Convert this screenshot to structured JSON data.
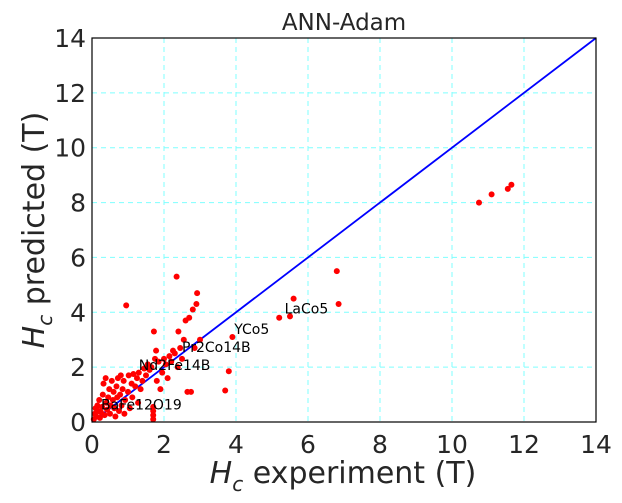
{
  "chart_data": {
    "type": "scatter",
    "title": "ANN-Adam",
    "xlabel": {
      "symbol": "H",
      "subscript": "c",
      "text": " experiment (T)"
    },
    "ylabel": {
      "symbol": "H",
      "subscript": "c",
      "text": " predicted (T)"
    },
    "xlim": [
      0,
      14
    ],
    "ylim": [
      0,
      14
    ],
    "xticks": [
      0,
      2,
      4,
      6,
      8,
      10,
      12,
      14
    ],
    "yticks": [
      0,
      2,
      4,
      6,
      8,
      10,
      12,
      14
    ],
    "grid": true,
    "colors": {
      "points": "#ff0000",
      "line": "#0000ff",
      "grid": "#7fffff",
      "axes": "#000000"
    },
    "reference_line": {
      "x": [
        0,
        14
      ],
      "y": [
        0,
        14
      ]
    },
    "series": [
      {
        "points": [
          [
            0.05,
            0.1
          ],
          [
            0.08,
            0.3
          ],
          [
            0.1,
            0.5
          ],
          [
            0.12,
            0.2
          ],
          [
            0.15,
            0.6
          ],
          [
            0.18,
            0.4
          ],
          [
            0.2,
            0.8
          ],
          [
            0.22,
            0.15
          ],
          [
            0.25,
            0.35
          ],
          [
            0.28,
            0.55
          ],
          [
            0.3,
            1.0
          ],
          [
            0.32,
            1.4
          ],
          [
            0.35,
            0.25
          ],
          [
            0.38,
            1.6
          ],
          [
            0.4,
            0.7
          ],
          [
            0.42,
            0.45
          ],
          [
            0.45,
            0.9
          ],
          [
            0.48,
            1.2
          ],
          [
            0.5,
            0.3
          ],
          [
            0.52,
            0.6
          ],
          [
            0.55,
            1.5
          ],
          [
            0.58,
            0.8
          ],
          [
            0.6,
            1.1
          ],
          [
            0.62,
            0.5
          ],
          [
            0.65,
            0.2
          ],
          [
            0.68,
            1.3
          ],
          [
            0.7,
            0.9
          ],
          [
            0.72,
            1.6
          ],
          [
            0.75,
            0.4
          ],
          [
            0.78,
            1.0
          ],
          [
            0.8,
            1.7
          ],
          [
            0.82,
            0.6
          ],
          [
            0.85,
            1.2
          ],
          [
            0.88,
            1.5
          ],
          [
            0.9,
            0.3
          ],
          [
            0.92,
            0.8
          ],
          [
            0.95,
            4.25
          ],
          [
            1.0,
            1.1
          ],
          [
            1.02,
            1.7
          ],
          [
            1.05,
            0.5
          ],
          [
            1.1,
            1.4
          ],
          [
            1.12,
            0.9
          ],
          [
            1.15,
            1.75
          ],
          [
            1.2,
            1.3
          ],
          [
            1.25,
            1.6
          ],
          [
            1.28,
            0.7
          ],
          [
            1.3,
            1.8
          ],
          [
            1.35,
            1.2
          ],
          [
            1.4,
            1.5
          ],
          [
            1.45,
            1.95
          ],
          [
            1.5,
            1.7
          ],
          [
            1.55,
            2.1
          ],
          [
            1.6,
            1.9
          ],
          [
            1.65,
            2.0
          ],
          [
            1.7,
            0.1
          ],
          [
            1.7,
            0.25
          ],
          [
            1.7,
            0.4
          ],
          [
            1.7,
            0.55
          ],
          [
            1.72,
            3.3
          ],
          [
            1.75,
            2.3
          ],
          [
            1.78,
            2.6
          ],
          [
            1.8,
            1.5
          ],
          [
            1.85,
            2.2
          ],
          [
            1.9,
            1.2
          ],
          [
            1.95,
            1.8
          ],
          [
            2.0,
            2.3
          ],
          [
            2.05,
            2.1
          ],
          [
            2.1,
            1.6
          ],
          [
            2.15,
            2.4
          ],
          [
            2.2,
            2.2
          ],
          [
            2.25,
            2.6
          ],
          [
            2.3,
            2.5
          ],
          [
            2.35,
            5.3
          ],
          [
            2.38,
            2.0
          ],
          [
            2.4,
            3.3
          ],
          [
            2.45,
            2.7
          ],
          [
            2.5,
            2.3
          ],
          [
            2.55,
            3.0
          ],
          [
            2.6,
            3.7
          ],
          [
            2.65,
            1.1
          ],
          [
            2.7,
            3.8
          ],
          [
            2.75,
            1.1
          ],
          [
            2.8,
            4.1
          ],
          [
            2.85,
            2.7
          ],
          [
            2.9,
            4.3
          ],
          [
            2.92,
            4.7
          ],
          [
            3.0,
            3.0
          ],
          [
            3.7,
            1.15
          ],
          [
            3.8,
            1.85
          ],
          [
            3.9,
            3.1
          ],
          [
            5.2,
            3.8
          ],
          [
            5.5,
            3.85
          ],
          [
            5.6,
            4.5
          ],
          [
            6.8,
            5.5
          ],
          [
            6.85,
            4.3
          ],
          [
            10.75,
            8.0
          ],
          [
            11.1,
            8.3
          ],
          [
            11.55,
            8.5
          ],
          [
            11.65,
            8.65
          ]
        ]
      }
    ],
    "annotations": [
      {
        "text": "LaCo5",
        "x": 5.35,
        "y": 3.95
      },
      {
        "text": "YCo5",
        "x": 3.95,
        "y": 3.2
      },
      {
        "text": "Pr2Co14B",
        "x": 2.5,
        "y": 2.55
      },
      {
        "text": "Nd2Fe14B",
        "x": 1.3,
        "y": 1.9
      },
      {
        "text": "BaFe12O19",
        "x": 0.25,
        "y": 0.45
      }
    ]
  }
}
